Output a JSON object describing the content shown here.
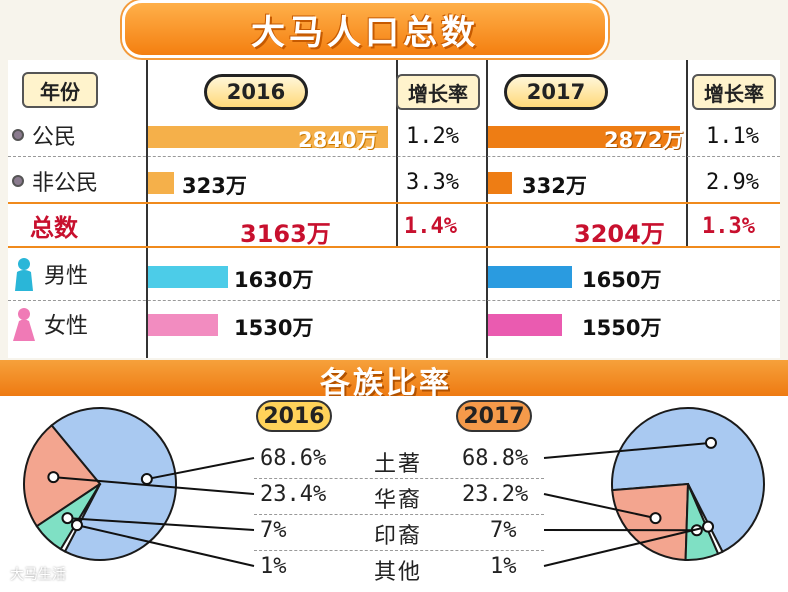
{
  "title": "大马人口总数",
  "header": {
    "year_label": "年份",
    "year_2016": "2016",
    "year_2017": "2017",
    "growth_label": "增长率"
  },
  "rows": [
    {
      "label": "公民",
      "v2016": "2840万",
      "r2016": "1.2%",
      "v2017": "2872万",
      "r2017": "1.1%"
    },
    {
      "label": "非公民",
      "v2016": "323万",
      "r2016": "3.3%",
      "v2017": "332万",
      "r2017": "2.9%"
    },
    {
      "label": "总数",
      "v2016": "3163万",
      "r2016": "1.4%",
      "v2017": "3204万",
      "r2017": "1.3%"
    },
    {
      "label": "男性",
      "v2016": "1630万",
      "v2017": "1650万"
    },
    {
      "label": "女性",
      "v2016": "1530万",
      "v2017": "1550万"
    }
  ],
  "ethnic": {
    "title": "各族比率",
    "year_2016": "2016",
    "year_2017": "2017",
    "groups": [
      {
        "name": "土著",
        "p2016": "68.6%",
        "p2017": "68.8%"
      },
      {
        "name": "华裔",
        "p2016": "23.4%",
        "p2017": "23.2%"
      },
      {
        "name": "印裔",
        "p2016": "7%",
        "p2017": "7%"
      },
      {
        "name": "其他",
        "p2016": "1%",
        "p2017": "1%"
      }
    ]
  },
  "watermark": "大马生活",
  "colors": {
    "orange": "#f08a1c",
    "citizen2016": "#f5b04a",
    "citizen2017": "#ee7d14",
    "male2016": "#4ccce8",
    "male2017": "#2a9be0",
    "female2016": "#f28cc0",
    "female2017": "#ea5bb0",
    "pie_blue": "#a9c9f1",
    "pie_salmon": "#f3a58f",
    "pie_green": "#7fe0c4"
  },
  "chart_data": [
    {
      "type": "bar",
      "title": "大马人口总数",
      "categories": [
        "公民",
        "非公民",
        "男性",
        "女性"
      ],
      "series": [
        {
          "name": "2016",
          "values": [
            2840,
            323,
            1630,
            1530
          ]
        },
        {
          "name": "2017",
          "values": [
            2872,
            332,
            1650,
            1550
          ]
        }
      ],
      "totals": {
        "2016": 3163,
        "2017": 3204
      },
      "growth": {
        "2016": [
          1.2,
          3.3,
          1.4
        ],
        "2017": [
          1.1,
          2.9,
          1.3
        ]
      },
      "unit": "万"
    },
    {
      "type": "pie",
      "title": "各族比率",
      "categories": [
        "土著",
        "华裔",
        "印裔",
        "其他"
      ],
      "series": [
        {
          "name": "2016",
          "values": [
            68.6,
            23.4,
            7,
            1
          ]
        },
        {
          "name": "2017",
          "values": [
            68.8,
            23.2,
            7,
            1
          ]
        }
      ]
    }
  ]
}
